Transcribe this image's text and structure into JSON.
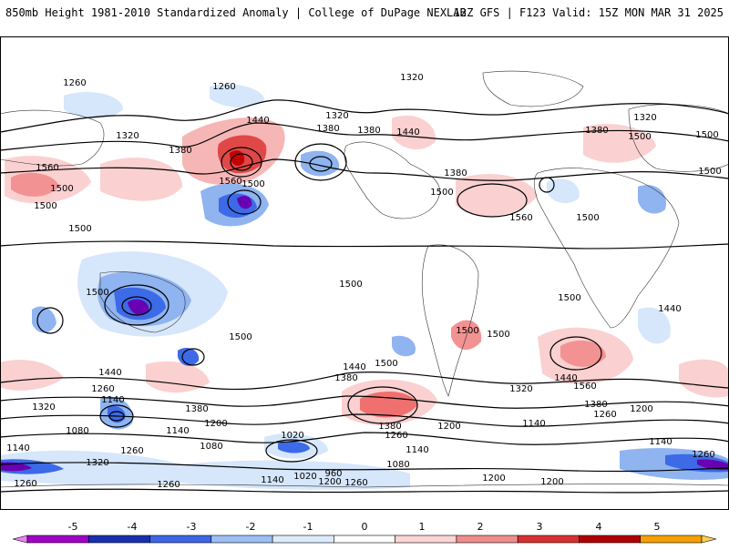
{
  "header": {
    "title": "850mb Height 1981-2010 Standardized Anomaly | College of DuPage NEXLAB",
    "run_info": "12Z GFS | F123 Valid: 15Z MON MAR 31 2025"
  },
  "map": {
    "variable": "850mb Height",
    "contour_labels": [
      "1260",
      "1260",
      "1320",
      "1440",
      "1320",
      "1320",
      "1380",
      "1380",
      "1440",
      "1380",
      "1560",
      "1500",
      "1500",
      "1560",
      "1500",
      "1500",
      "1380",
      "1500",
      "1560",
      "1500",
      "1500",
      "1500",
      "1320",
      "1380",
      "1500",
      "1500",
      "1500",
      "1500",
      "1440",
      "1380",
      "1500",
      "1440",
      "1500",
      "1440",
      "1320",
      "1560",
      "1320",
      "1440",
      "1260",
      "1140",
      "1380",
      "1260",
      "1380",
      "1200",
      "1140",
      "1080",
      "1260",
      "1020",
      "960",
      "1200",
      "1260",
      "1200",
      "1080",
      "1140",
      "1320",
      "1260",
      "1140",
      "1200",
      "1260",
      "1200",
      "1140",
      "1200",
      "1380",
      "1260",
      "1260",
      "1140",
      "1020",
      "1080",
      "1140",
      "1500",
      "1500"
    ],
    "colors": {
      "neg5": "#6a00b4",
      "neg4": "#1f3fc4",
      "neg3": "#3d6ae6",
      "neg2": "#8fb4f0",
      "neg1": "#d6e6fb",
      "pos1": "#fbdada",
      "pos2": "#f39292",
      "pos3": "#e04848",
      "pos4": "#c40000",
      "pos5": "#f5a000"
    }
  },
  "colorbar": {
    "ticks": [
      "-5",
      "-4",
      "-3",
      "-2",
      "-1",
      "0",
      "1",
      "2",
      "3",
      "4",
      "5"
    ],
    "colors": [
      "#f080f0",
      "#a000c8",
      "#1830b0",
      "#3c64e6",
      "#9cc0f4",
      "#dcebfc",
      "#ffffff",
      "#fbd4d4",
      "#f08c8c",
      "#d83030",
      "#b00000",
      "#f5a000",
      "#f8d050"
    ]
  }
}
